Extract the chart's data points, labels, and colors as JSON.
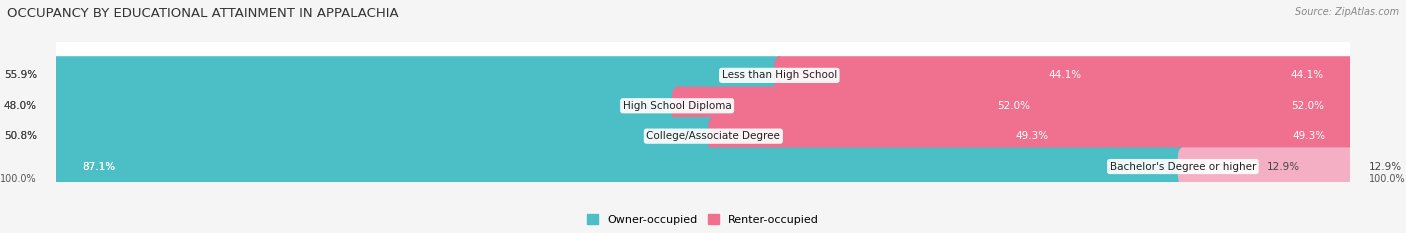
{
  "title": "OCCUPANCY BY EDUCATIONAL ATTAINMENT IN APPALACHIA",
  "source": "Source: ZipAtlas.com",
  "categories": [
    "Less than High School",
    "High School Diploma",
    "College/Associate Degree",
    "Bachelor's Degree or higher"
  ],
  "owner_values": [
    55.9,
    48.0,
    50.8,
    87.1
  ],
  "renter_values": [
    44.1,
    52.0,
    49.3,
    12.9
  ],
  "owner_color": "#4bbec6",
  "renter_color": "#f07090",
  "renter_color_light": "#f4afc4",
  "background_color": "#f5f5f5",
  "bar_bg_color": "#ffffff",
  "title_fontsize": 9.5,
  "label_fontsize": 7.5,
  "value_fontsize": 7.5,
  "legend_fontsize": 8,
  "source_fontsize": 7
}
